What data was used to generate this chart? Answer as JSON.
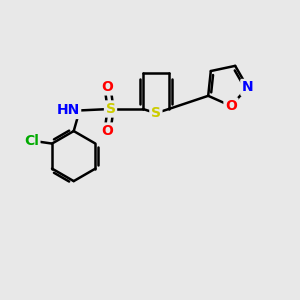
{
  "bg_color": "#e8e8e8",
  "bond_color": "#000000",
  "bond_width": 1.8,
  "atom_colors": {
    "S_sulfo": "#cccc00",
    "S_thio": "#cccc00",
    "N": "#0000ff",
    "O": "#ff0000",
    "Cl": "#00aa00",
    "H": "#888888",
    "C": "#000000"
  },
  "font_size": 10,
  "fig_size": [
    3.0,
    3.0
  ],
  "dpi": 100,
  "xlim": [
    0,
    10
  ],
  "ylim": [
    0,
    10
  ]
}
